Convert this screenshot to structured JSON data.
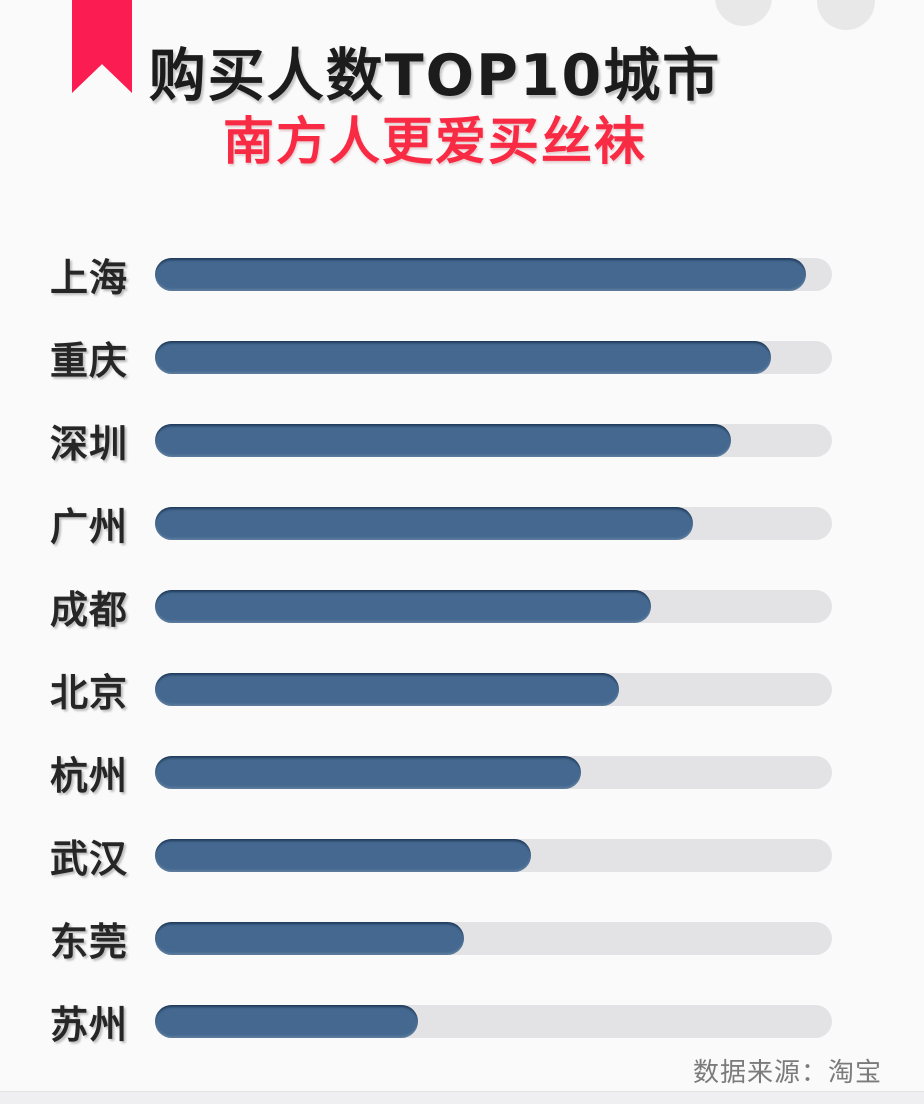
{
  "page": {
    "background_color": "#fafafb",
    "bottom_strip_color": "#efeff1"
  },
  "decor": {
    "ribbon_color": "#fb1c51",
    "circle_color": "#e8e8e8"
  },
  "header": {
    "title": "购买人数TOP10城市",
    "subtitle": "南方人更爱买丝袜",
    "title_color": "#1c1c1c",
    "subtitle_color": "#f92b44"
  },
  "chart_data": {
    "type": "bar",
    "orientation": "horizontal",
    "title": "购买人数TOP10城市",
    "subtitle": "南方人更爱买丝袜",
    "categories": [
      "上海",
      "重庆",
      "深圳",
      "广州",
      "成都",
      "北京",
      "杭州",
      "武汉",
      "东莞",
      "苏州"
    ],
    "values": [
      96.2,
      91.0,
      85.1,
      79.4,
      73.2,
      68.6,
      62.9,
      55.5,
      45.7,
      38.8
    ],
    "values_unit": "percent_of_full_track_estimated_from_pixels",
    "value_labels_shown": false,
    "axis_shown": false,
    "gridlines": false,
    "legend_position": "none",
    "bar_color": "#44688f",
    "track_color": "#e3e3e5"
  },
  "footer": {
    "source_text": "数据来源：淘宝",
    "color": "#7b7b7b"
  }
}
